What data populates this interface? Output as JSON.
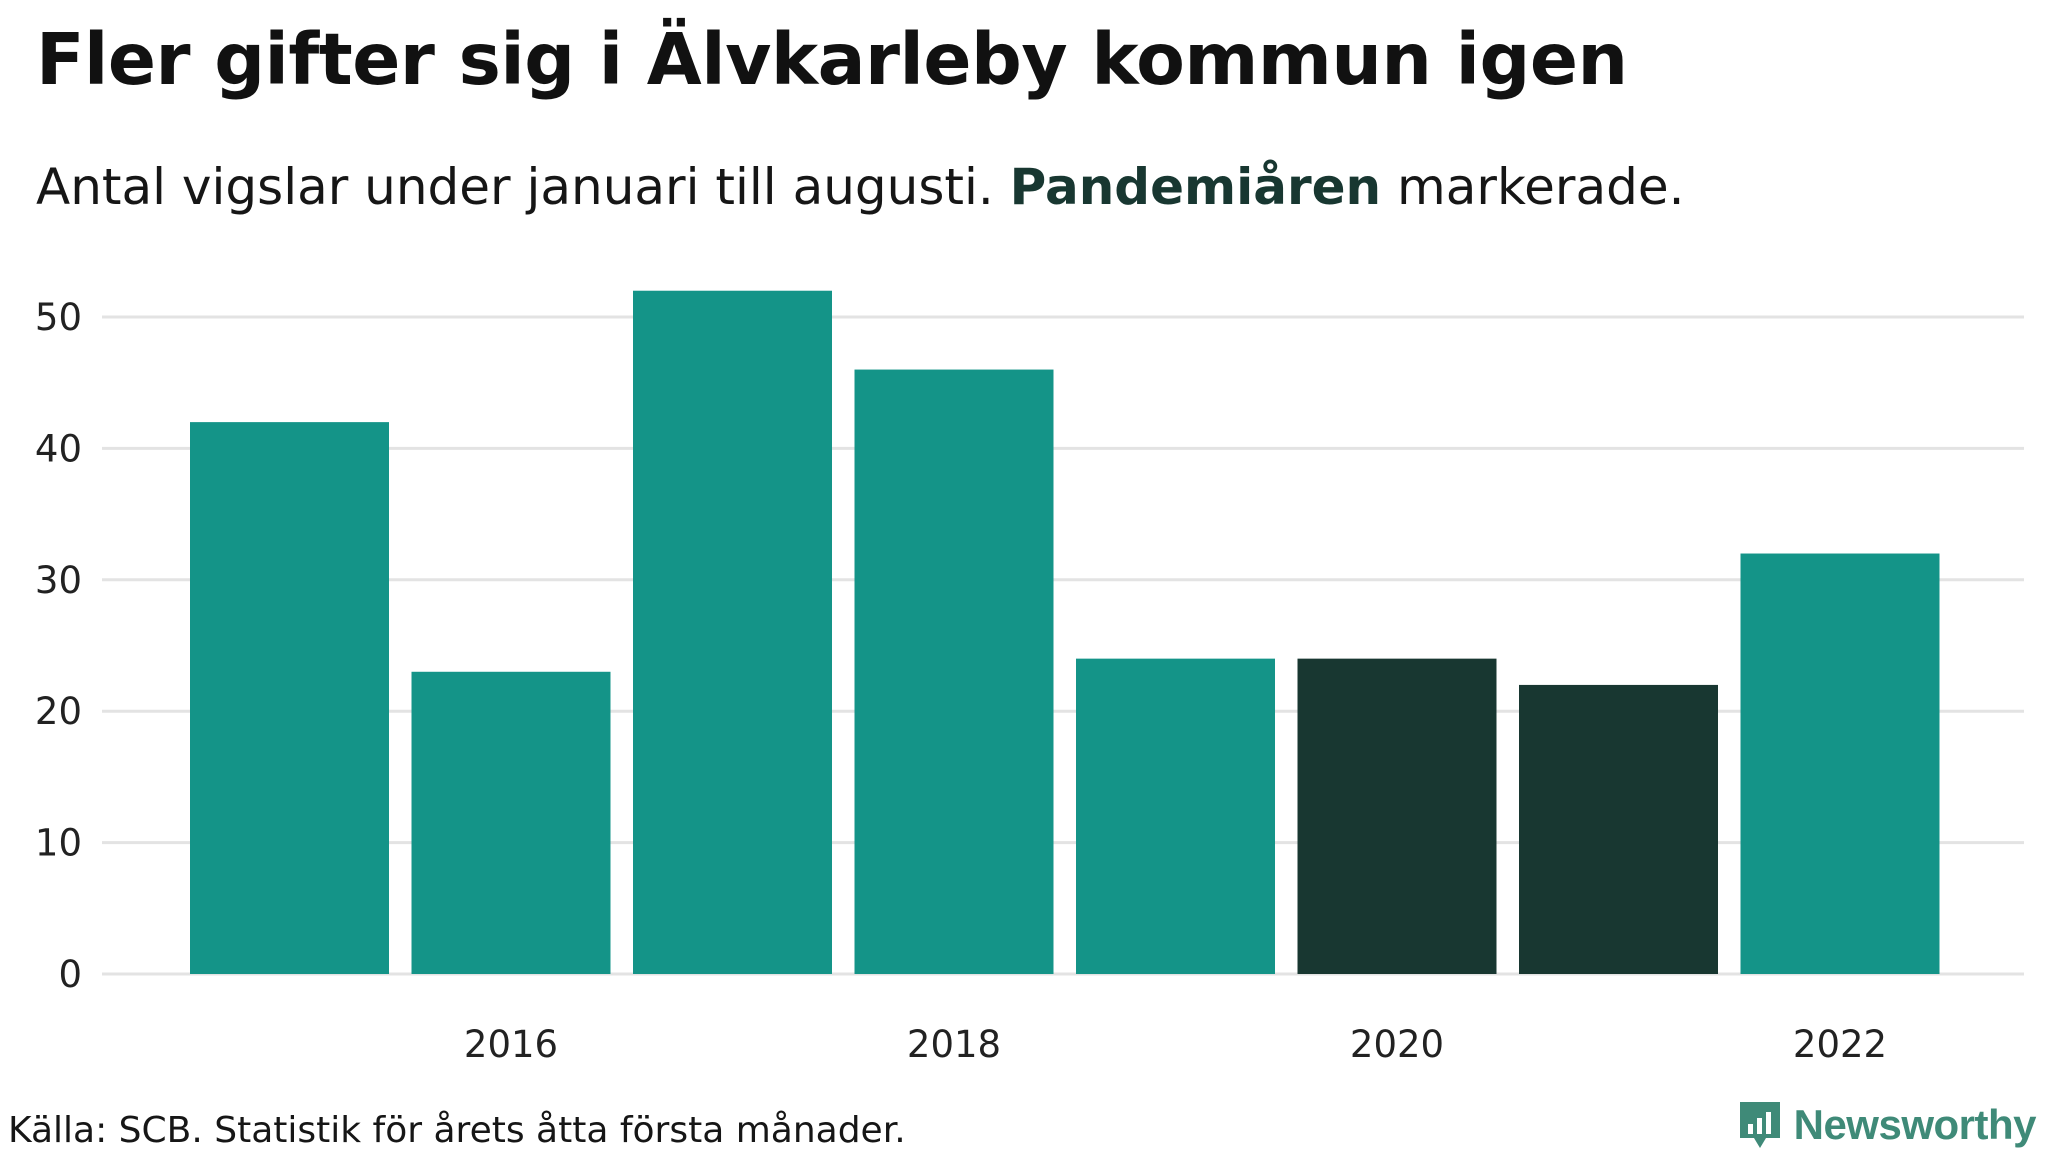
{
  "header": {
    "title": "Fler gifter sig i Älvkarleby kommun igen",
    "subtitle_before": "Antal vigslar under januari till augusti. ",
    "subtitle_highlight": "Pandemiåren",
    "subtitle_after": " markerade."
  },
  "footer": {
    "source": "Källa: SCB. Statistik för årets åtta första månader.",
    "brand": "Newsworthy"
  },
  "colors": {
    "bar_default": "#149488",
    "bar_pandemic": "#183731",
    "highlight_text": "#183731",
    "grid": "#e3e3e3",
    "brand": "#3f8a78"
  },
  "chart_data": {
    "type": "bar",
    "categories": [
      "2015",
      "2016",
      "2017",
      "2018",
      "2019",
      "2020",
      "2021",
      "2022"
    ],
    "values": [
      42,
      23,
      52,
      46,
      24,
      24,
      22,
      32
    ],
    "highlighted": [
      false,
      false,
      false,
      false,
      false,
      true,
      true,
      false
    ],
    "x_tick_labels": [
      "2016",
      "2018",
      "2020",
      "2022"
    ],
    "y_ticks": [
      0,
      10,
      20,
      30,
      40,
      50
    ],
    "ylim": [
      0,
      55
    ],
    "grid": true,
    "title": "Fler gifter sig i Älvkarleby kommun igen",
    "xlabel": "",
    "ylabel": ""
  }
}
